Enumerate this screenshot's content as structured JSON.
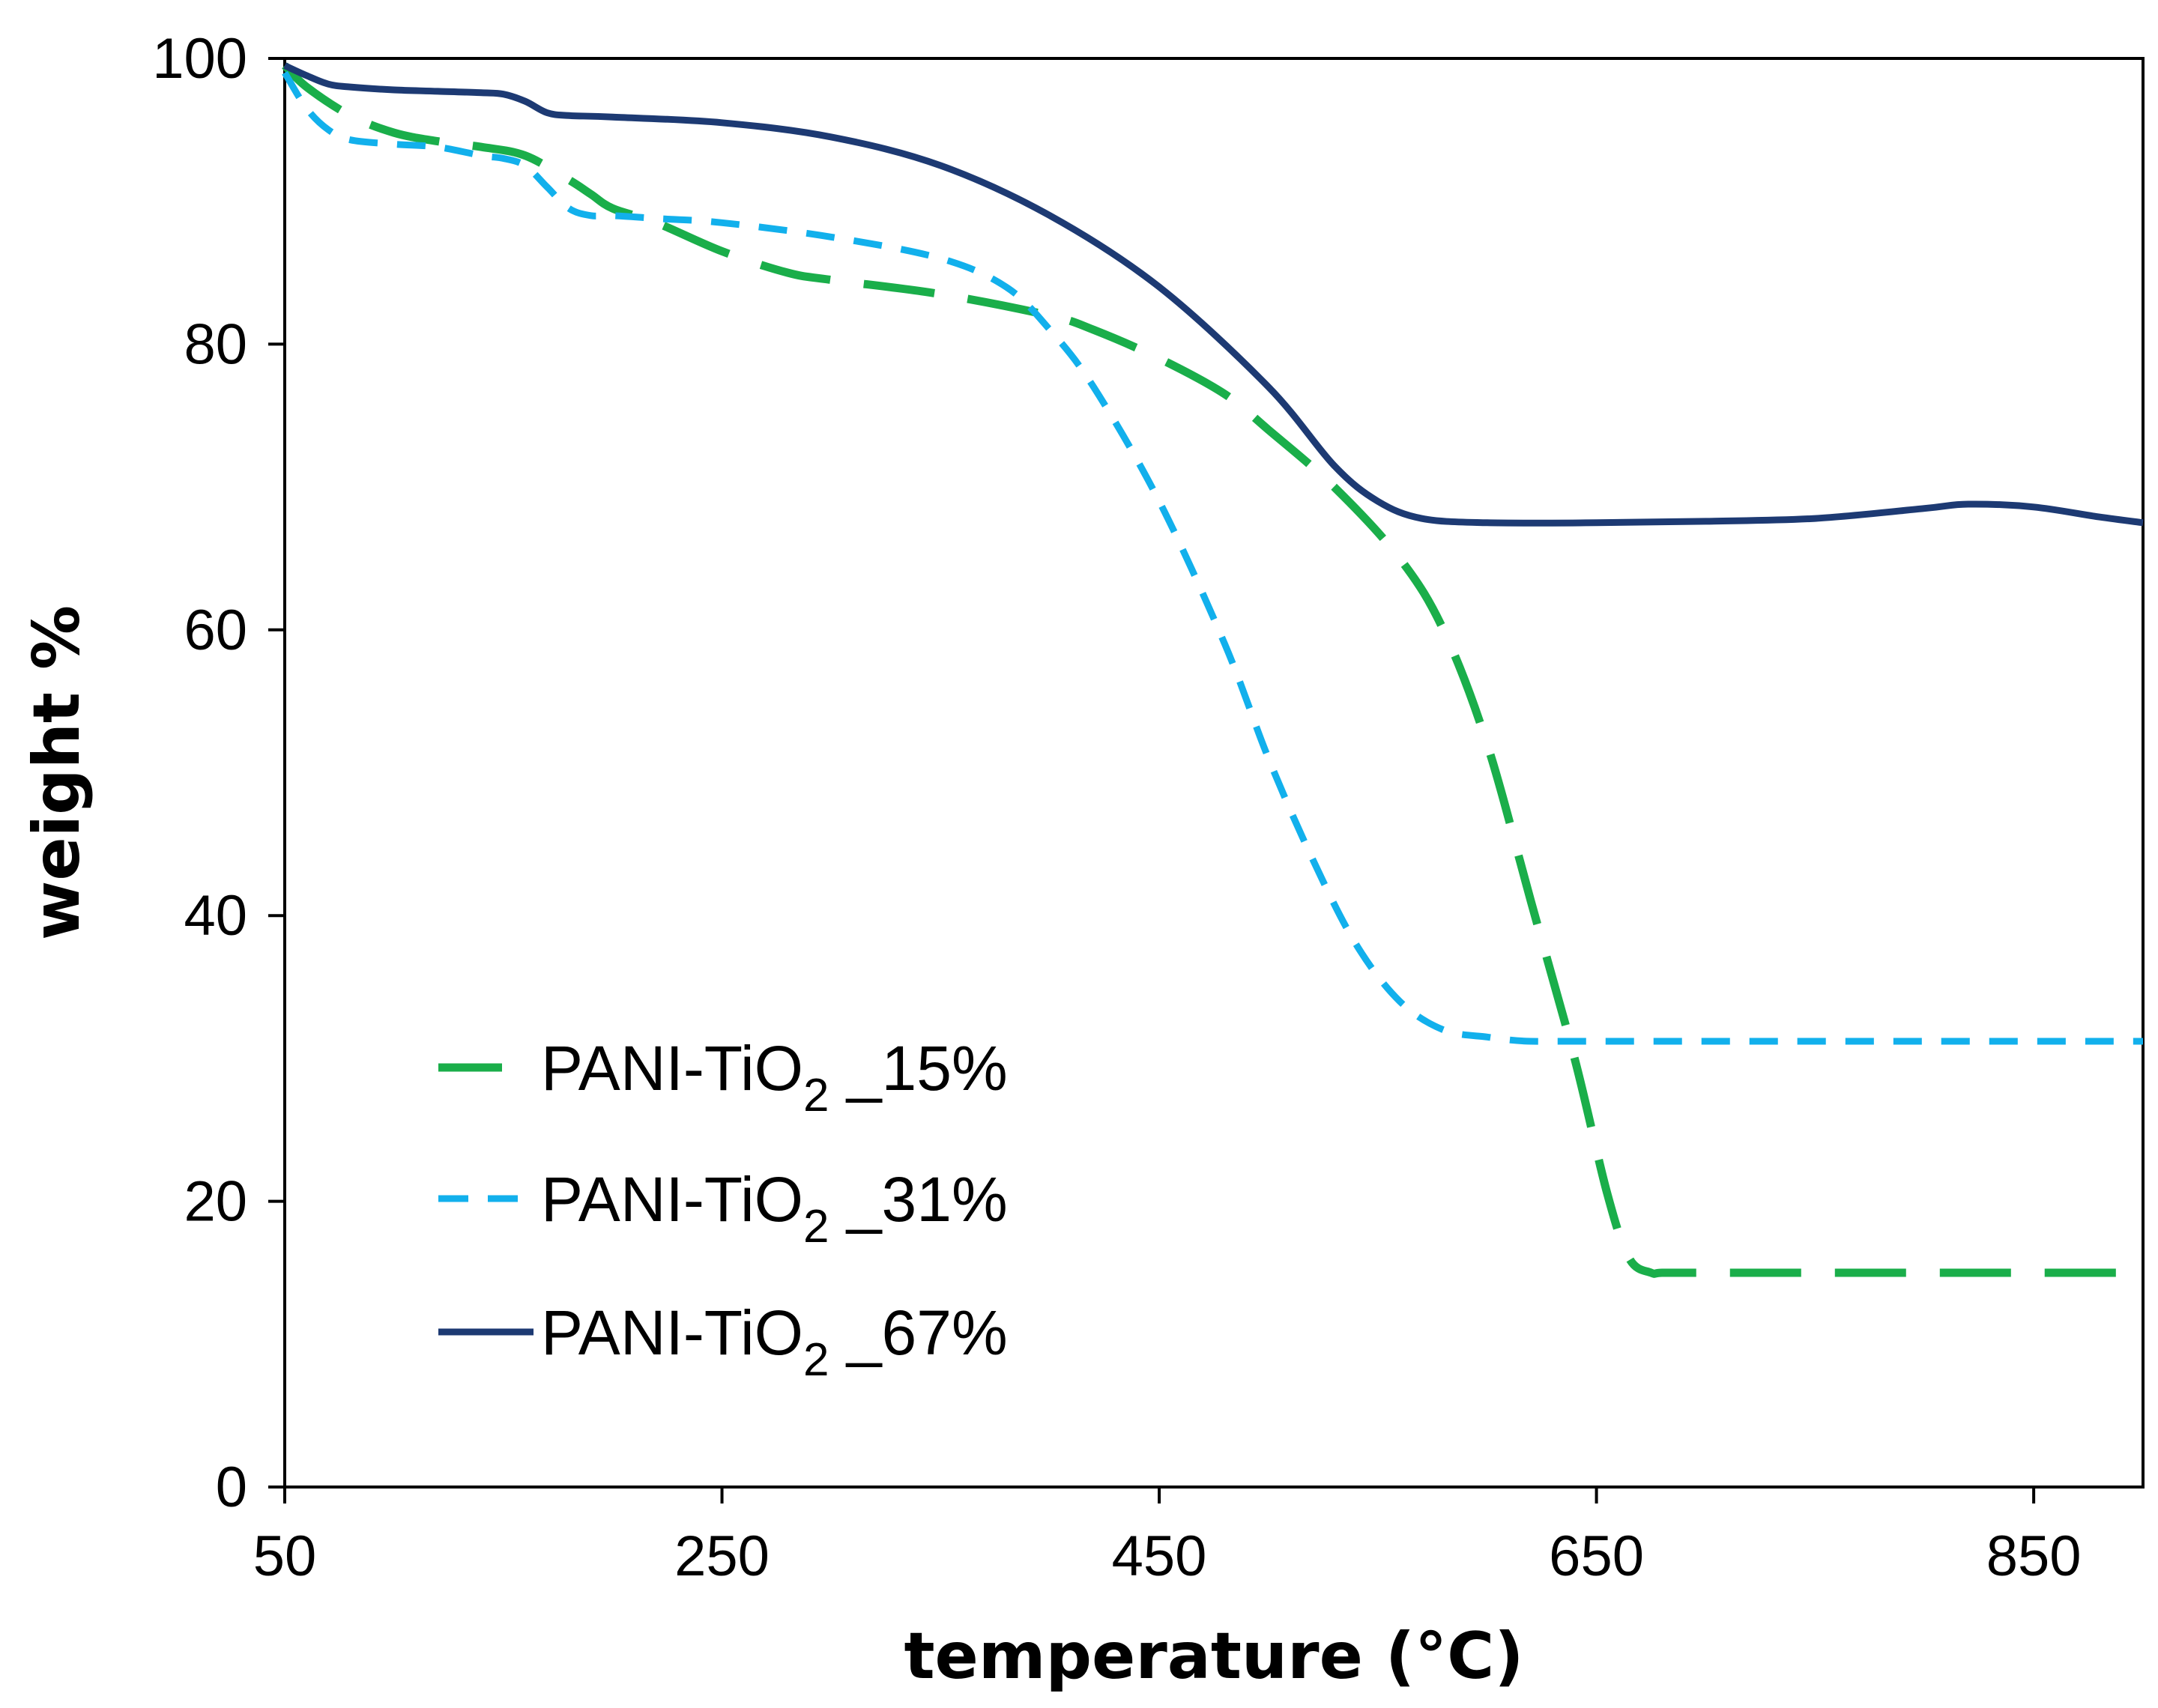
{
  "chart_data": {
    "type": "line",
    "title": "",
    "xlabel": "temperature (°C)",
    "ylabel": "weight %",
    "xlim": [
      50,
      900
    ],
    "ylim": [
      0,
      100
    ],
    "xticks": [
      50,
      250,
      450,
      650,
      850
    ],
    "yticks": [
      0,
      20,
      40,
      60,
      80,
      100
    ],
    "grid": false,
    "legend_position": "bottom-left",
    "series": [
      {
        "name": "PANI-TiO2 _15%",
        "label_main": "PANI-TiO",
        "label_sub": "2",
        "label_tail": " _15%",
        "color": "#1aae4a",
        "style": "long-dash",
        "x": [
          50,
          60,
          80,
          100,
          120,
          140,
          160,
          180,
          190,
          200,
          220,
          250,
          280,
          300,
          350,
          400,
          420,
          450,
          480,
          500,
          530,
          560,
          580,
          600,
          620,
          640,
          655,
          665,
          675,
          680,
          700,
          750,
          800,
          850,
          900
        ],
        "y": [
          99.5,
          98,
          96,
          94.8,
          94.2,
          93.8,
          93.2,
          91.5,
          90.5,
          89.5,
          88.5,
          86.5,
          85,
          84.5,
          83.5,
          82,
          81,
          79,
          76.5,
          74,
          70,
          65,
          60,
          52,
          41,
          30,
          20.5,
          16,
          15,
          15,
          15,
          15,
          15,
          15,
          15
        ]
      },
      {
        "name": "PANI-TiO2 _31%",
        "label_main": "PANI-TiO",
        "label_sub": "2",
        "label_tail": " _31%",
        "color": "#12b0ec",
        "style": "short-dash",
        "x": [
          50,
          60,
          70,
          80,
          100,
          120,
          140,
          150,
          160,
          170,
          180,
          190,
          200,
          220,
          250,
          300,
          350,
          380,
          400,
          420,
          450,
          480,
          500,
          520,
          540,
          560,
          580,
          600,
          610,
          620,
          640,
          700,
          800,
          900
        ],
        "y": [
          99,
          96.5,
          95,
          94.3,
          94,
          93.8,
          93.2,
          93,
          92.5,
          91,
          89.5,
          89,
          89,
          88.8,
          88.5,
          87.5,
          86,
          84,
          81,
          77,
          69,
          59,
          51,
          44,
          38,
          34,
          32,
          31.5,
          31.3,
          31.2,
          31.2,
          31.2,
          31.2,
          31.2
        ]
      },
      {
        "name": "PANI-TiO2 _67%",
        "label_main": "PANI-TiO",
        "label_sub": "2",
        "label_tail": " _67%",
        "color": "#1d3a73",
        "style": "solid",
        "x": [
          50,
          60,
          70,
          80,
          100,
          120,
          140,
          150,
          160,
          170,
          180,
          200,
          250,
          300,
          350,
          400,
          450,
          500,
          530,
          550,
          570,
          600,
          650,
          700,
          750,
          800,
          820,
          850,
          880,
          900
        ],
        "y": [
          99.5,
          98.8,
          98.2,
          98,
          97.8,
          97.7,
          97.6,
          97.5,
          97,
          96.2,
          96,
          95.9,
          95.5,
          94.5,
          92.5,
          89,
          84,
          77,
          71.5,
          69,
          67.8,
          67.5,
          67.5,
          67.6,
          67.8,
          68.5,
          68.8,
          68.6,
          67.9,
          67.5
        ]
      }
    ]
  }
}
